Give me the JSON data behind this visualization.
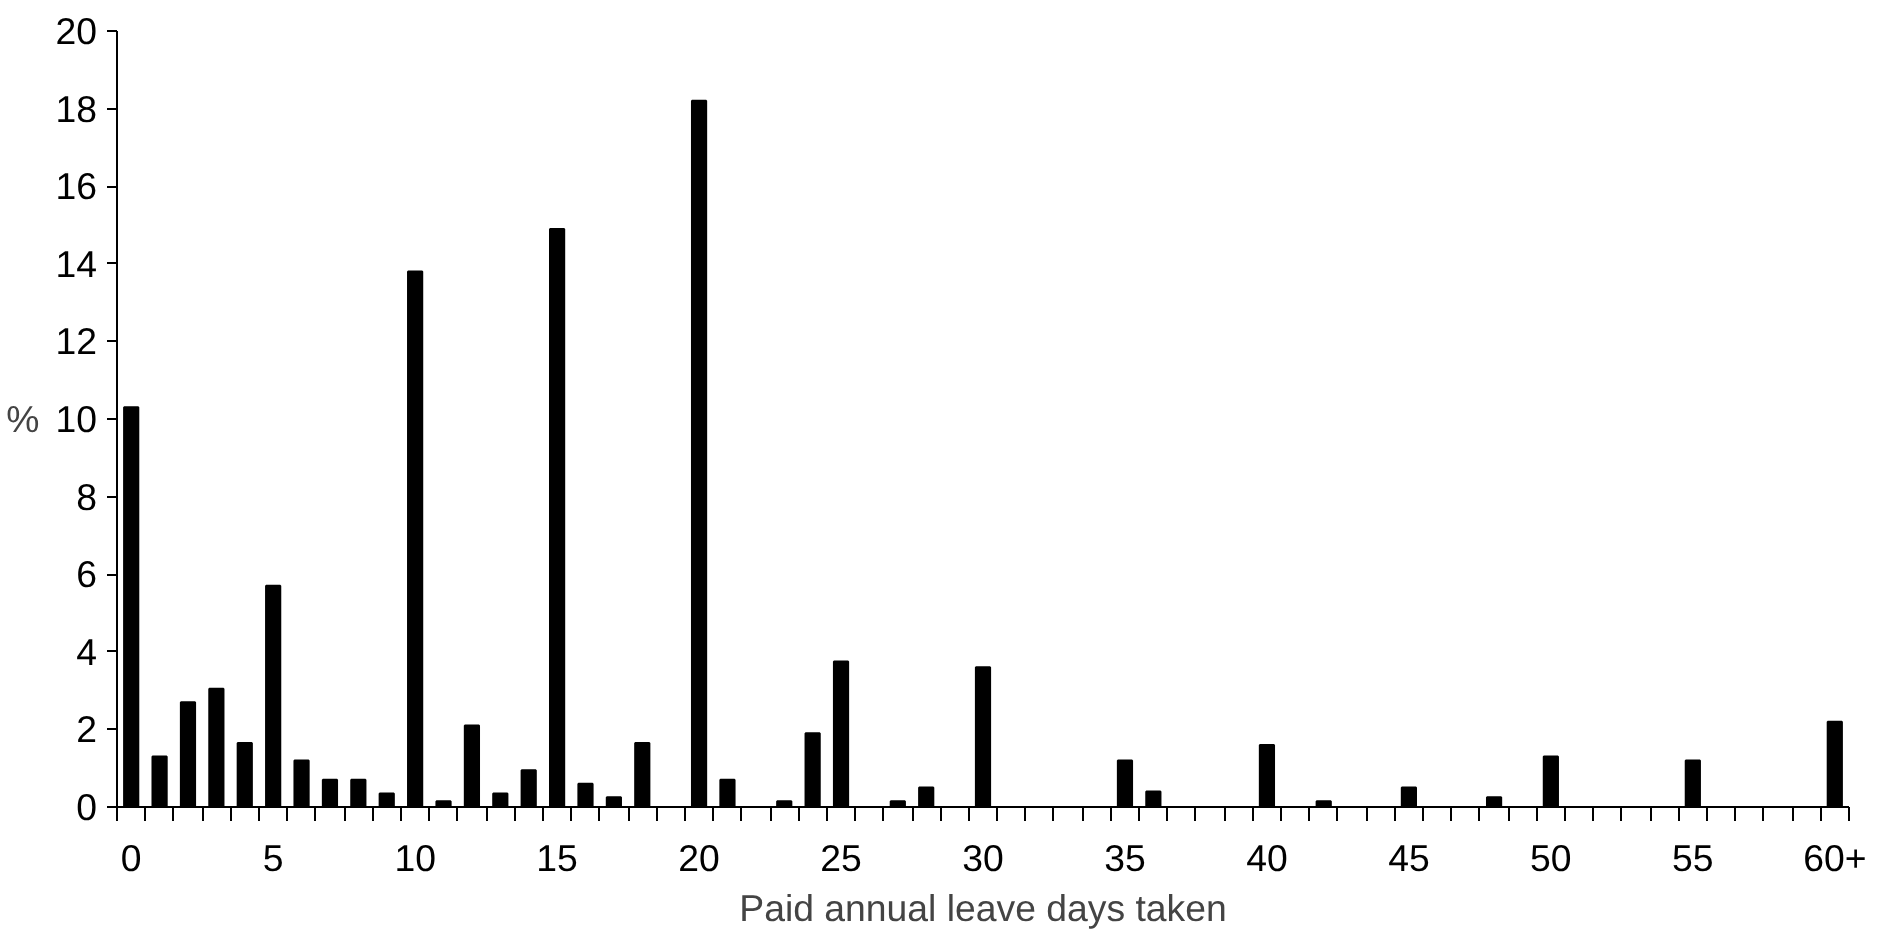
{
  "chart_data": {
    "type": "bar",
    "xlabel": "Paid annual leave days taken",
    "ylabel": "%",
    "categories": [
      "0",
      null,
      null,
      null,
      null,
      "5",
      null,
      null,
      null,
      null,
      "10",
      null,
      null,
      null,
      null,
      "15",
      null,
      null,
      null,
      null,
      "20",
      null,
      null,
      null,
      null,
      "25",
      null,
      null,
      null,
      null,
      "30",
      null,
      null,
      null,
      null,
      "35",
      null,
      null,
      null,
      null,
      "40",
      null,
      null,
      null,
      null,
      "45",
      null,
      null,
      null,
      null,
      "50",
      null,
      null,
      null,
      null,
      "55",
      null,
      null,
      null,
      null,
      "60+"
    ],
    "values": [
      10.3,
      1.3,
      2.7,
      3.05,
      1.65,
      5.7,
      1.2,
      0.7,
      0.7,
      0.35,
      13.8,
      0.15,
      2.1,
      0.35,
      0.95,
      14.9,
      0.6,
      0.25,
      1.65,
      0,
      18.2,
      0.7,
      0,
      0.15,
      1.9,
      3.75,
      0,
      0.15,
      0.5,
      0,
      3.6,
      0,
      0,
      0,
      0,
      1.2,
      0.4,
      0,
      0,
      0,
      1.6,
      0,
      0.15,
      0,
      0,
      0.5,
      0,
      0,
      0.25,
      0,
      1.3,
      0,
      0,
      0,
      0,
      1.2,
      0,
      0,
      0,
      0,
      2.2
    ],
    "color": "#000000",
    "ylim": [
      0,
      20
    ],
    "yticks": [
      0,
      2,
      4,
      6,
      8,
      10,
      12,
      14,
      16,
      18,
      20
    ],
    "grid": false
  }
}
